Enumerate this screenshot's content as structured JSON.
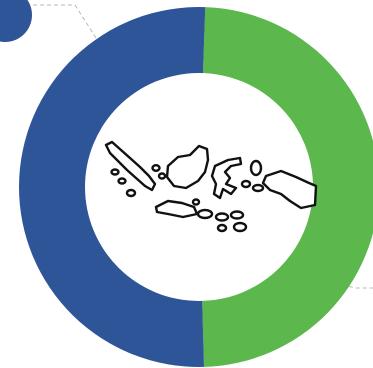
{
  "chart_data": {
    "type": "pie",
    "style": "donut",
    "categories": [
      "",
      ""
    ],
    "values": [
      49,
      51
    ],
    "colors": [
      "#5cb84c",
      "#2e5597"
    ],
    "title": "",
    "legend": "none"
  },
  "decor": {
    "center_icon": "indonesia-map-icon",
    "marker_color": "#2e5597",
    "leader_line_color": "#b8b8b8"
  }
}
